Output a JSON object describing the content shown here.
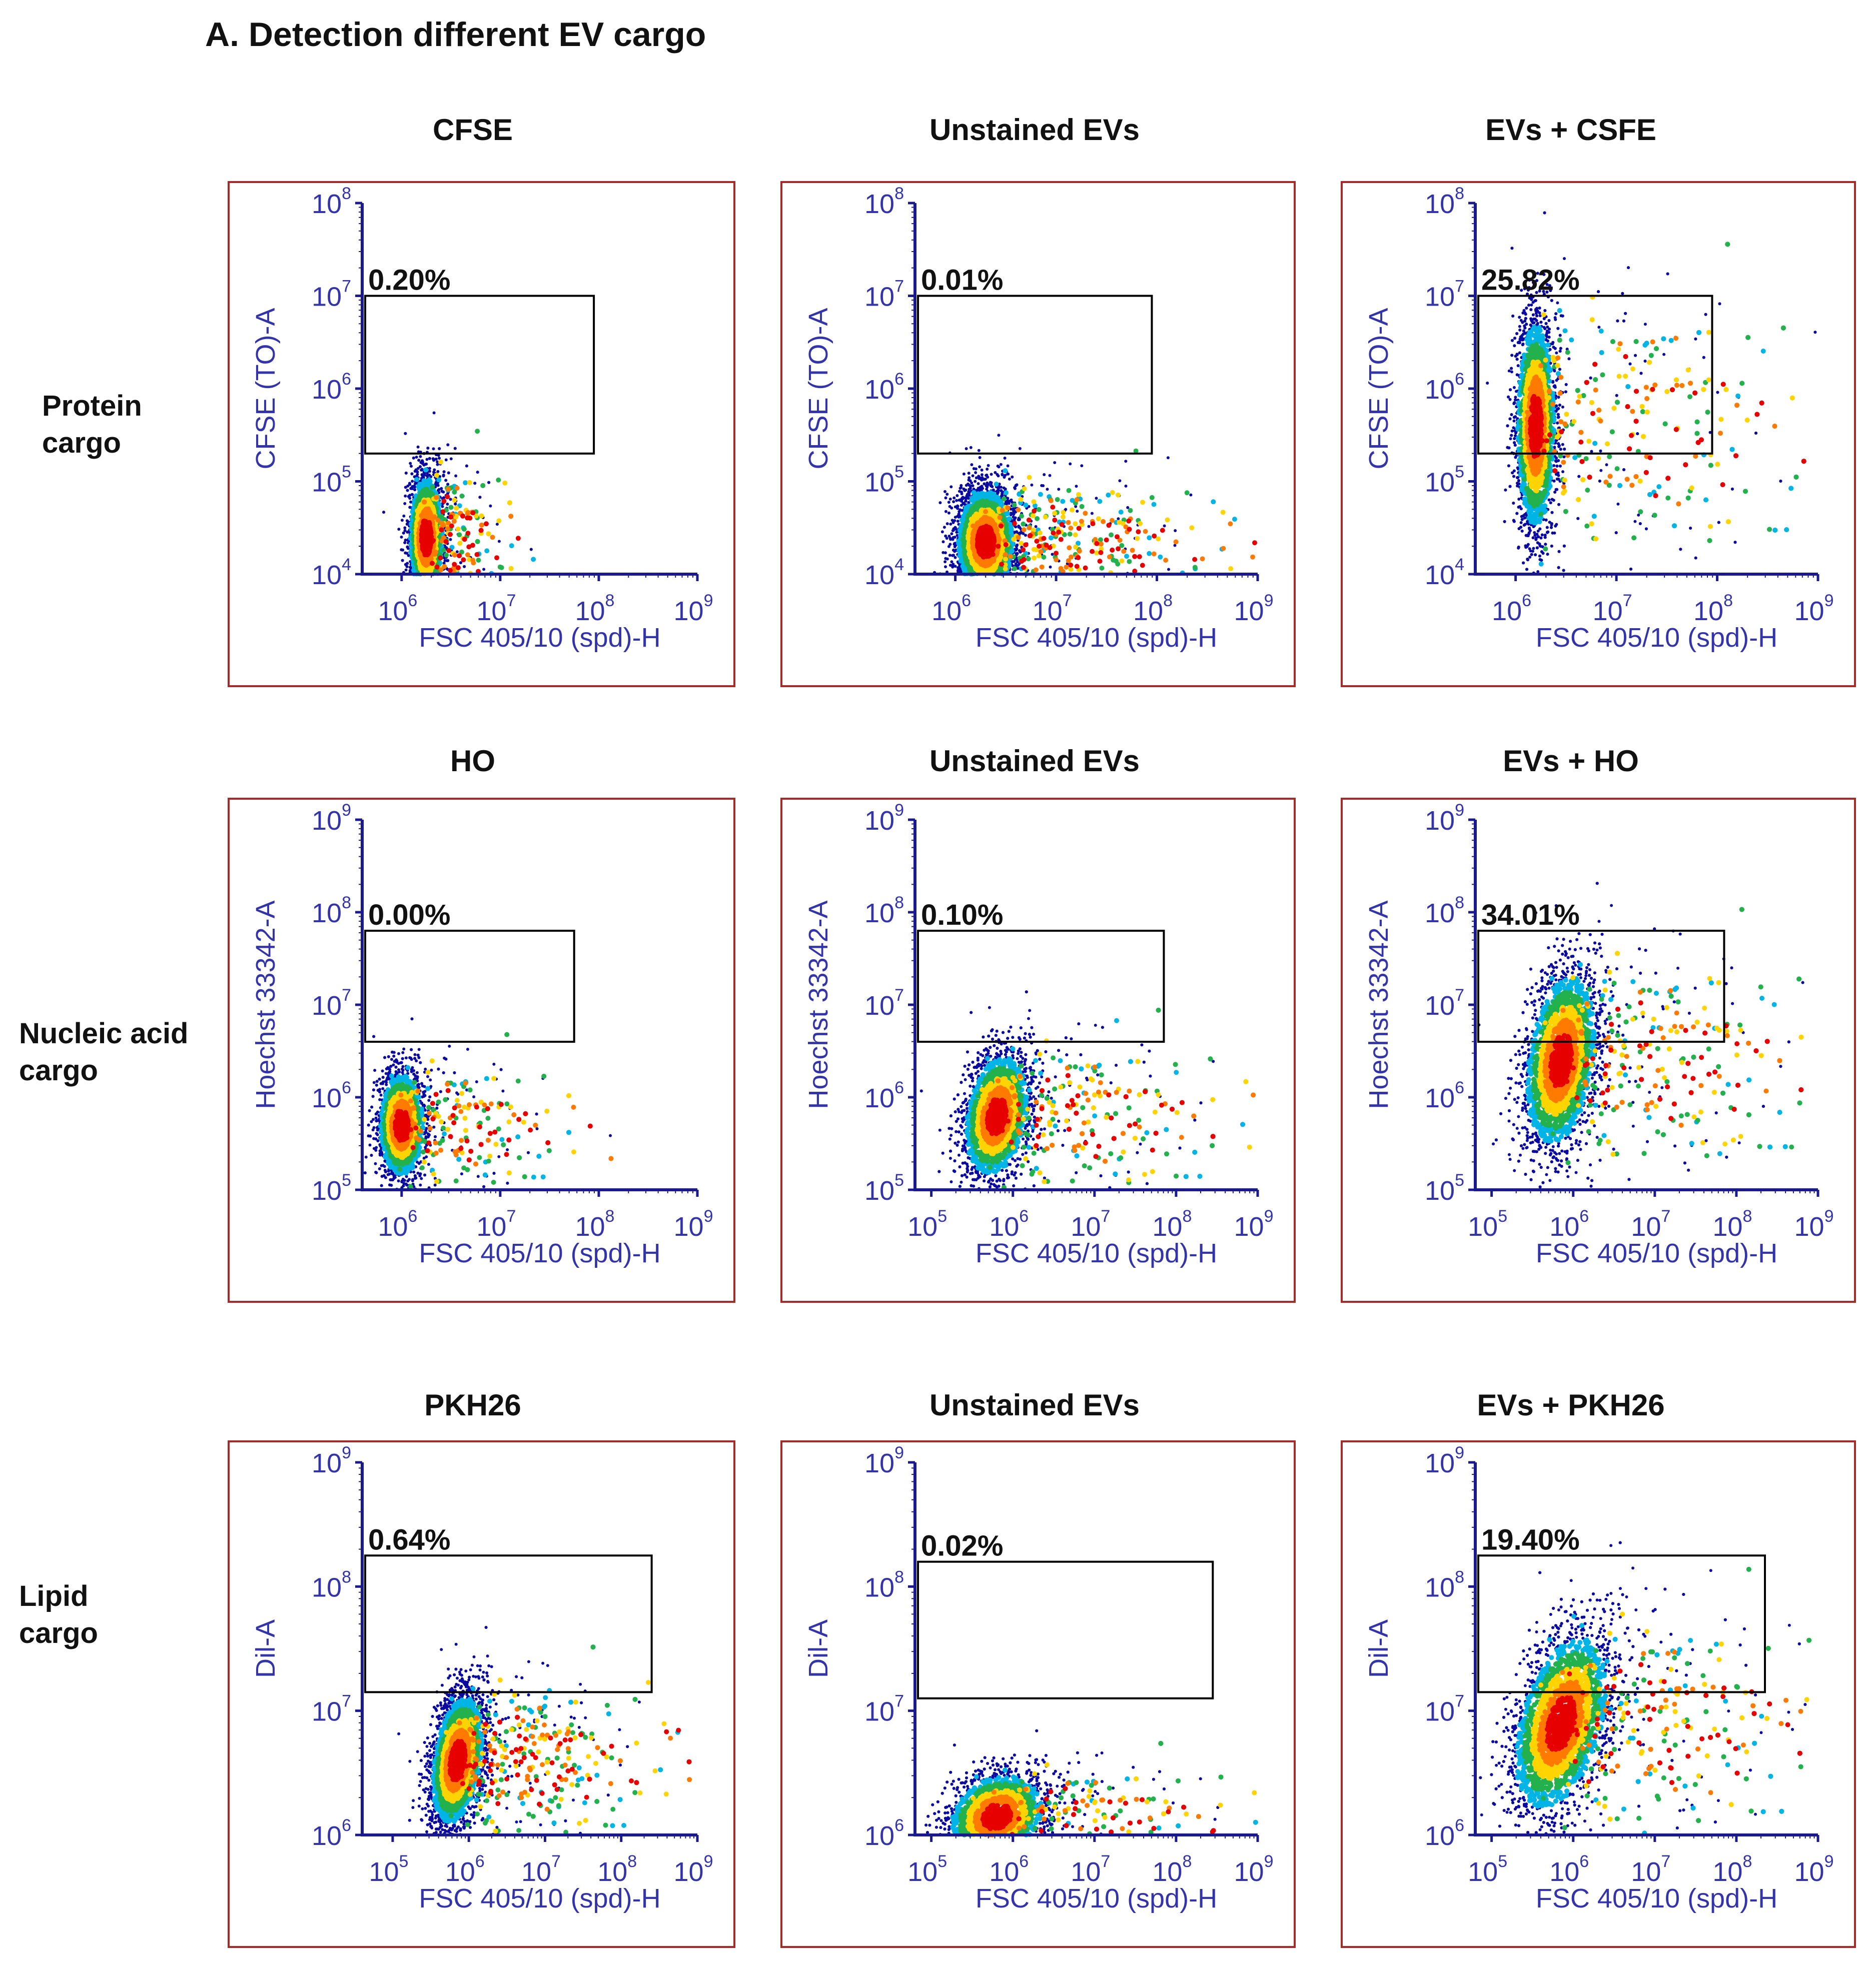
{
  "figure_title": "A. Detection different EV cargo",
  "row_labels": [
    "Protein\ncargo",
    "Nucleic acid\ncargo",
    "Lipid\ncargo"
  ],
  "colors": {
    "frame": "#a52a2a",
    "axis": "#1a1a8c",
    "axis_text": "#3333aa",
    "gate": "#000000"
  },
  "chart_data": [
    {
      "type": "scatter",
      "title": "CFSE",
      "gate_label": "0.20%",
      "xlabel": "FSC 405/10 (spd)-H",
      "ylabel": "CFSE (TO)-A",
      "xlim_log": [
        5.6,
        9.0
      ],
      "ylim_log": [
        4,
        8
      ],
      "xticks_log": [
        6,
        7,
        8,
        9
      ],
      "yticks_log": [
        4,
        5,
        6,
        7,
        8
      ],
      "gate": {
        "x_log": [
          5.6,
          7.95
        ],
        "y_log": [
          5.3,
          7.0
        ]
      },
      "population": {
        "cx_log": 6.25,
        "cy_log": 4.4,
        "sx": 0.09,
        "sy": 0.35,
        "tilt": 0,
        "tail_x": 0.12,
        "n": 3200
      }
    },
    {
      "type": "scatter",
      "title": "Unstained EVs",
      "gate_label": "0.01%",
      "xlabel": "FSC 405/10 (spd)-H",
      "ylabel": "CFSE (TO)-A",
      "xlim_log": [
        5.6,
        9.0
      ],
      "ylim_log": [
        4,
        8
      ],
      "xticks_log": [
        6,
        7,
        8,
        9
      ],
      "yticks_log": [
        4,
        5,
        6,
        7,
        8
      ],
      "gate": {
        "x_log": [
          5.6,
          7.95
        ],
        "y_log": [
          5.3,
          7.0
        ]
      },
      "population": {
        "cx_log": 6.3,
        "cy_log": 4.35,
        "sx": 0.15,
        "sy": 0.3,
        "tilt": 0,
        "tail_x": 0.35,
        "n": 3600
      }
    },
    {
      "type": "scatter",
      "title": "EVs + CSFE",
      "gate_label": "25.82%",
      "xlabel": "FSC 405/10 (spd)-H",
      "ylabel": "CFSE (TO)-A",
      "xlim_log": [
        5.6,
        9.0
      ],
      "ylim_log": [
        4,
        8
      ],
      "xticks_log": [
        6,
        7,
        8,
        9
      ],
      "yticks_log": [
        4,
        5,
        6,
        7,
        8
      ],
      "gate": {
        "x_log": [
          5.6,
          7.95
        ],
        "y_log": [
          5.3,
          7.0
        ]
      },
      "population": {
        "cx_log": 6.2,
        "cy_log": 5.6,
        "sx": 0.1,
        "sy": 0.6,
        "tilt": 0,
        "tail_x": 0.45,
        "n": 5200
      }
    },
    {
      "type": "scatter",
      "title": "HO",
      "gate_label": "0.00%",
      "xlabel": "FSC 405/10 (spd)-H",
      "ylabel": "Hoechst 33342-A",
      "xlim_log": [
        5.6,
        9.0
      ],
      "ylim_log": [
        5,
        9
      ],
      "xticks_log": [
        6,
        7,
        8,
        9
      ],
      "yticks_log": [
        5,
        6,
        7,
        8,
        9
      ],
      "gate": {
        "x_log": [
          5.6,
          7.75
        ],
        "y_log": [
          6.6,
          7.8
        ]
      },
      "population": {
        "cx_log": 6.0,
        "cy_log": 5.7,
        "sx": 0.12,
        "sy": 0.3,
        "tilt": 0,
        "tail_x": 0.25,
        "n": 3000
      }
    },
    {
      "type": "scatter",
      "title": "Unstained EVs",
      "gate_label": "0.10%",
      "xlabel": "FSC 405/10 (spd)-H",
      "ylabel": "Hoechst 33342-A",
      "xlim_log": [
        4.8,
        9.0
      ],
      "ylim_log": [
        5,
        9
      ],
      "xticks_log": [
        5,
        6,
        7,
        8,
        9
      ],
      "yticks_log": [
        5,
        6,
        7,
        8,
        9
      ],
      "gate": {
        "x_log": [
          4.8,
          7.85
        ],
        "y_log": [
          6.6,
          7.8
        ]
      },
      "population": {
        "cx_log": 5.8,
        "cy_log": 5.8,
        "sx": 0.2,
        "sy": 0.35,
        "tilt": 0.25,
        "tail_x": 0.45,
        "n": 5000
      }
    },
    {
      "type": "scatter",
      "title": "EVs + HO",
      "gate_label": "34.01%",
      "xlabel": "FSC 405/10 (spd)-H",
      "ylabel": "Hoechst 33342-A",
      "xlim_log": [
        4.8,
        9.0
      ],
      "ylim_log": [
        5,
        9
      ],
      "xticks_log": [
        5,
        6,
        7,
        8,
        9
      ],
      "yticks_log": [
        5,
        6,
        7,
        8,
        9
      ],
      "gate": {
        "x_log": [
          4.8,
          7.85
        ],
        "y_log": [
          6.6,
          7.8
        ]
      },
      "population": {
        "cx_log": 5.85,
        "cy_log": 6.4,
        "sx": 0.22,
        "sy": 0.5,
        "tilt": 0.3,
        "tail_x": 0.5,
        "n": 5600
      }
    },
    {
      "type": "scatter",
      "title": "PKH26",
      "gate_label": "0.64%",
      "xlabel": "FSC 405/10 (spd)-H",
      "ylabel": "Dil-A",
      "xlim_log": [
        4.6,
        9.0
      ],
      "ylim_log": [
        6,
        9
      ],
      "xticks_log": [
        5,
        6,
        7,
        8,
        9
      ],
      "yticks_log": [
        6,
        7,
        8,
        9
      ],
      "gate": {
        "x_log": [
          4.6,
          8.4
        ],
        "y_log": [
          7.15,
          8.25
        ]
      },
      "population": {
        "cx_log": 5.85,
        "cy_log": 6.6,
        "sx": 0.17,
        "sy": 0.28,
        "tilt": 0.35,
        "tail_x": 0.4,
        "n": 4200
      }
    },
    {
      "type": "scatter",
      "title": "Unstained EVs",
      "gate_label": "0.02%",
      "xlabel": "FSC 405/10 (spd)-H",
      "ylabel": "Dil-A",
      "xlim_log": [
        4.8,
        9.0
      ],
      "ylim_log": [
        6,
        9
      ],
      "xticks_log": [
        5,
        6,
        7,
        8,
        9
      ],
      "yticks_log": [
        6,
        7,
        8,
        9
      ],
      "gate": {
        "x_log": [
          4.8,
          8.45
        ],
        "y_log": [
          7.1,
          8.2
        ]
      },
      "population": {
        "cx_log": 5.8,
        "cy_log": 6.15,
        "sx": 0.3,
        "sy": 0.18,
        "tilt": 0.2,
        "tail_x": 0.45,
        "n": 4200
      }
    },
    {
      "type": "scatter",
      "title": "EVs + PKH26",
      "gate_label": "19.40%",
      "xlabel": "FSC 405/10 (spd)-H",
      "ylabel": "Dil-A",
      "xlim_log": [
        4.8,
        9.0
      ],
      "ylim_log": [
        6,
        9
      ],
      "xticks_log": [
        5,
        6,
        7,
        8,
        9
      ],
      "yticks_log": [
        6,
        7,
        8,
        9
      ],
      "gate": {
        "x_log": [
          4.8,
          8.35
        ],
        "y_log": [
          7.15,
          8.25
        ]
      },
      "population": {
        "cx_log": 5.85,
        "cy_log": 6.9,
        "sx": 0.28,
        "sy": 0.38,
        "tilt": 0.45,
        "tail_x": 0.5,
        "n": 6000
      }
    }
  ]
}
